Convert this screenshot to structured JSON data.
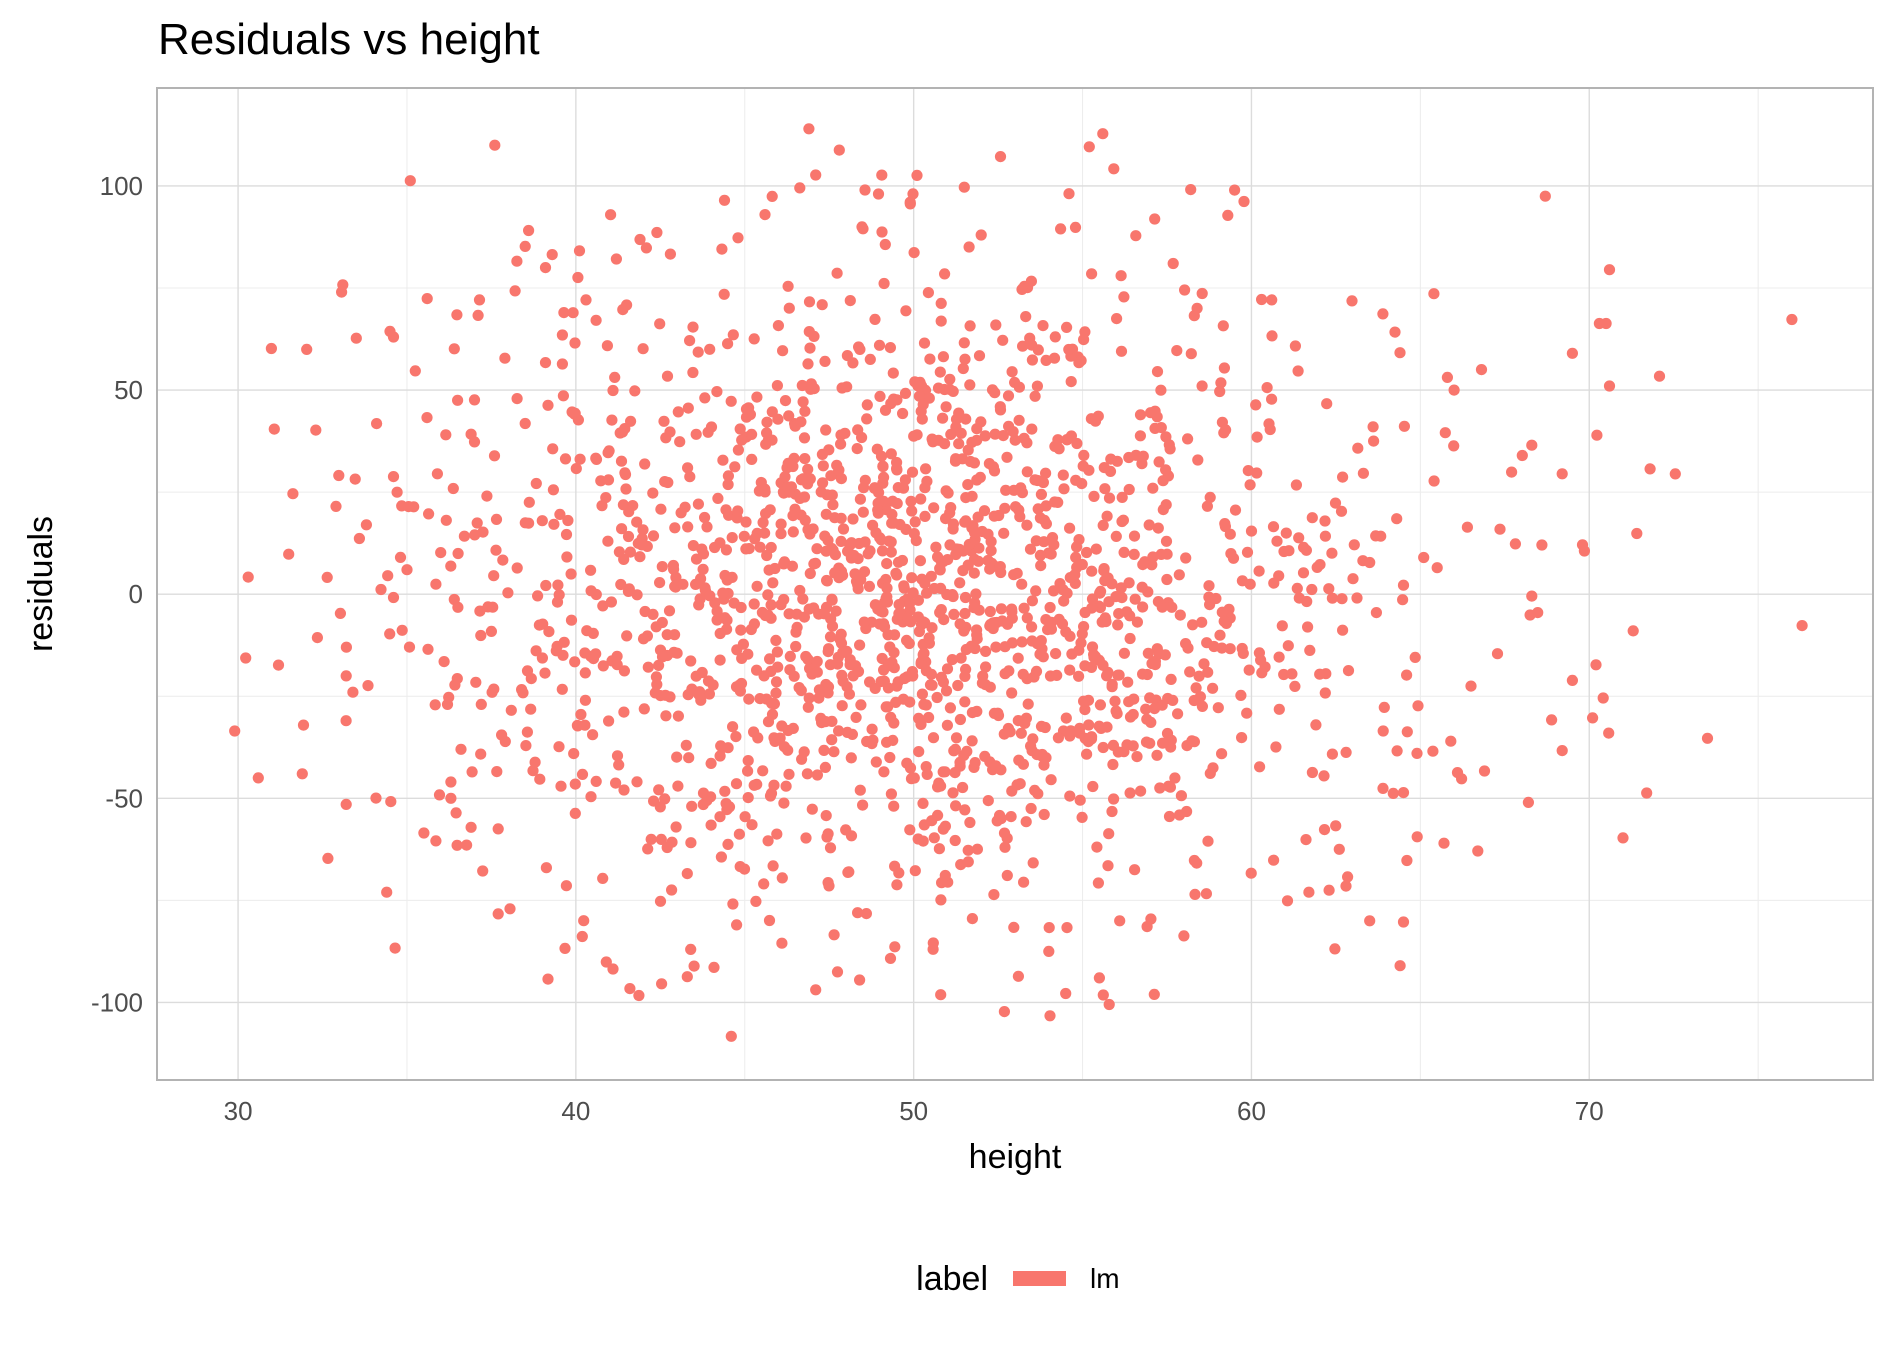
{
  "chart_data": {
    "type": "scatter",
    "title": "Residuals vs height",
    "xlabel": "height",
    "ylabel": "residuals",
    "xlim": [
      27.6,
      78.4
    ],
    "ylim": [
      -119,
      124
    ],
    "x_ticks": [
      30,
      40,
      50,
      60,
      70
    ],
    "y_ticks": [
      -100,
      -50,
      0,
      50,
      100
    ],
    "x_tick_labels": [
      "30",
      "40",
      "50",
      "60",
      "70"
    ],
    "y_tick_labels": [
      "-100",
      "-50",
      "0",
      "50",
      "100"
    ],
    "x_minor_ticks": [
      35,
      45,
      55,
      65,
      75
    ],
    "y_minor_ticks": [
      -75,
      -25,
      25,
      75
    ],
    "grid": true,
    "legend": {
      "title": "label",
      "position": "bottom",
      "entries": [
        "lm"
      ]
    },
    "point_color": "#F8766D",
    "series": [
      {
        "name": "lm",
        "points": [
          [
            29.9,
            -33.5
          ],
          [
            30.3,
            4.2
          ],
          [
            30.6,
            -45
          ],
          [
            31.5,
            9.8
          ],
          [
            31.9,
            -44
          ],
          [
            32.3,
            40.2
          ],
          [
            32.9,
            21.5
          ],
          [
            33.1,
            75.8
          ],
          [
            33.2,
            -20
          ],
          [
            33.2,
            -51.5
          ],
          [
            33.4,
            -24
          ],
          [
            33.5,
            62.7
          ],
          [
            33.8,
            17
          ],
          [
            34.1,
            41.8
          ],
          [
            34.4,
            -73
          ],
          [
            34.6,
            63
          ],
          [
            34.6,
            28.8
          ],
          [
            34.6,
            -0.8
          ],
          [
            35.0,
            6
          ],
          [
            35.1,
            101.3
          ],
          [
            35.2,
            21.4
          ],
          [
            35.5,
            -58.5
          ],
          [
            35.6,
            72.4
          ],
          [
            35.9,
            29.5
          ],
          [
            36.0,
            10.2
          ],
          [
            36.1,
            -16.5
          ],
          [
            36.2,
            -27
          ],
          [
            36.3,
            -50
          ],
          [
            36.3,
            -46
          ],
          [
            36.4,
            -1.3
          ],
          [
            36.5,
            47.5
          ],
          [
            36.6,
            -38
          ],
          [
            36.7,
            14.2
          ],
          [
            36.9,
            39.2
          ],
          [
            36.9,
            -57.1
          ],
          [
            37.0,
            37.3
          ],
          [
            37.0,
            47.6
          ],
          [
            37.2,
            -27
          ],
          [
            37.4,
            -3.1
          ],
          [
            37.5,
            -9.1
          ],
          [
            37.6,
            110
          ],
          [
            37.7,
            -78.3
          ],
          [
            37.7,
            -57.5
          ],
          [
            37.8,
            -34.5
          ],
          [
            37.9,
            57.8
          ],
          [
            38.2,
            74.3
          ],
          [
            38.5,
            85.2
          ],
          [
            38.6,
            89.1
          ],
          [
            39.1,
            80
          ],
          [
            39.3,
            83.2
          ],
          [
            39.6,
            56.4
          ],
          [
            39.6,
            63.5
          ],
          [
            40.3,
            72.1
          ],
          [
            40.6,
            67.1
          ],
          [
            40.9,
            -90.1
          ],
          [
            41.1,
            -91.8
          ],
          [
            41.2,
            82.1
          ],
          [
            41.6,
            -96.6
          ],
          [
            41.9,
            86.9
          ],
          [
            42.4,
            88.6
          ],
          [
            42.8,
            83.3
          ],
          [
            43.3,
            -93.7
          ],
          [
            43.4,
            -87
          ],
          [
            43.5,
            -91.1
          ],
          [
            44.4,
            96.5
          ],
          [
            44.6,
            -108.3
          ],
          [
            44.8,
            87.3
          ],
          [
            45.6,
            93
          ],
          [
            46.1,
            -85.5
          ],
          [
            46.9,
            114
          ],
          [
            47.1,
            -96.9
          ],
          [
            47.1,
            102.7
          ],
          [
            47.8,
            108.8
          ],
          [
            48.4,
            -94.5
          ],
          [
            48.5,
            89.5
          ],
          [
            49.9,
            95.6
          ],
          [
            50.1,
            102.6
          ],
          [
            50.8,
            -98.1
          ],
          [
            51.5,
            99.7
          ],
          [
            52.0,
            88
          ],
          [
            53.1,
            -93.6
          ],
          [
            54.0,
            -87.5
          ],
          [
            54.5,
            -97.8
          ],
          [
            54.6,
            98.1
          ],
          [
            55.2,
            109.6
          ],
          [
            55.6,
            112.8
          ],
          [
            55.5,
            -94
          ],
          [
            56.1,
            -80
          ],
          [
            58.0,
            -83.7
          ],
          [
            58.2,
            99.1
          ],
          [
            59.5,
            99
          ],
          [
            59.3,
            92.8
          ],
          [
            64.4,
            -91
          ],
          [
            64.5,
            -80.3
          ],
          [
            63.5,
            -80
          ],
          [
            68.7,
            97.5
          ],
          [
            65.4,
            73.6
          ],
          [
            70.3,
            66.3
          ],
          [
            70.6,
            79.5
          ],
          [
            70.5,
            66.3
          ],
          [
            69.5,
            59
          ],
          [
            70.6,
            51
          ],
          [
            76.0,
            67.3
          ],
          [
            76.3,
            -7.7
          ],
          [
            71.8,
            30.7
          ],
          [
            73.5,
            -35.3
          ],
          [
            71.7,
            -48.7
          ],
          [
            71.0,
            -59.7
          ],
          [
            71.3,
            -9
          ],
          [
            70.2,
            -17.3
          ],
          [
            70.1,
            -30.3
          ],
          [
            69.8,
            12.1
          ],
          [
            69.2,
            -38.3
          ],
          [
            69.2,
            29.5
          ],
          [
            68.2,
            -51
          ],
          [
            68.3,
            36.5
          ],
          [
            67.7,
            29.9
          ],
          [
            66.9,
            -43.3
          ],
          [
            66.7,
            -62.9
          ],
          [
            66.5,
            -22.5
          ],
          [
            66.1,
            -43.7
          ],
          [
            66.0,
            50
          ],
          [
            65.9,
            -36
          ],
          [
            65.7,
            -61
          ],
          [
            65.8,
            53.1
          ],
          [
            65.5,
            6.5
          ],
          [
            65.1,
            9
          ],
          [
            64.9,
            -39
          ],
          [
            64.5,
            -48.6
          ],
          [
            64.2,
            -48.8
          ],
          [
            64.3,
            18.5
          ],
          [
            64.5,
            2.2
          ],
          [
            63.9,
            -33.5
          ],
          [
            63.6,
            41
          ],
          [
            63.7,
            -4.5
          ],
          [
            63.3,
            8.2
          ],
          [
            62.8,
            -71.5
          ],
          [
            62.6,
            -62.5
          ],
          [
            62.3,
            -72.5
          ],
          [
            61.7,
            -73
          ],
          [
            61.3,
            60.8
          ],
          [
            60.6,
            72.1
          ],
          [
            60.3,
            72.2
          ]
        ]
      }
    ]
  }
}
